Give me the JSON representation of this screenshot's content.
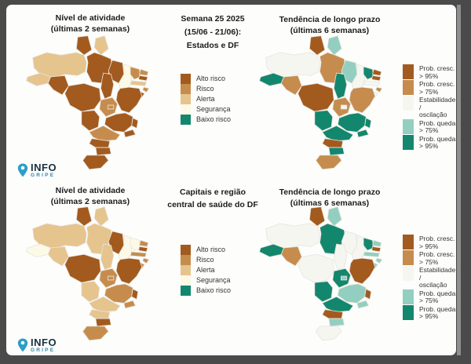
{
  "page": {
    "background": "#fdfdfc",
    "frame_color": "#4a4a4a"
  },
  "colors": {
    "alto": "#a35a1e",
    "risco": "#c68c4d",
    "alerta": "#e6c48e",
    "seguranca": "#fcfae6",
    "baixo": "#13876d",
    "cresc95": "#a35a1e",
    "cresc75": "#c68c4d",
    "estab": "#f6f6f1",
    "queda75": "#93cfc0",
    "queda95": "#13876d"
  },
  "sections": {
    "estados": {
      "activity_title": [
        "Nível de atividade",
        "(últimas 2 semanas)"
      ],
      "center_title": [
        "Semana 25 2025",
        "(15/06 - 21/06):",
        "Estados e DF"
      ],
      "trend_title": [
        "Tendência de longo prazo",
        "(últimas 6 semanas)"
      ]
    },
    "capitais": {
      "activity_title": [
        "Nível de atividade",
        "(últimas 2 semanas)"
      ],
      "center_title": [
        "Capitais e região",
        "central de saúde do DF"
      ],
      "trend_title": [
        "Tendência de longo prazo",
        "(últimas 6 semanas)"
      ]
    }
  },
  "legends": {
    "activity": [
      {
        "key": "alto",
        "label": "Alto risco"
      },
      {
        "key": "risco",
        "label": "Risco"
      },
      {
        "key": "alerta",
        "label": "Alerta"
      },
      {
        "key": "seguranca",
        "label": "Segurança"
      },
      {
        "key": "baixo",
        "label": "Baixo risco"
      }
    ],
    "trend": [
      {
        "key": "cresc95",
        "label": [
          "Prob. cresc.",
          "> 95%"
        ]
      },
      {
        "key": "cresc75",
        "label": [
          "Prob. cresc.",
          "> 75%"
        ]
      },
      {
        "key": "estab",
        "label": [
          "Estabilidade /",
          "oscilação"
        ]
      },
      {
        "key": "queda75",
        "label": [
          "Prob. queda",
          "> 75%"
        ]
      },
      {
        "key": "queda95",
        "label": [
          "Prob. queda",
          "> 95%"
        ]
      }
    ]
  },
  "logo": {
    "line1": "INFO",
    "line2": "GRIPE",
    "pin_color": "#2d9dc9",
    "text_color": "#19323e",
    "sub_color": "#2e87ae"
  },
  "maps": {
    "estados_atividade": {
      "states": {
        "RR": "alto",
        "AP": "alerta",
        "AM": "alerta",
        "AC": "alerta",
        "RO": "alto",
        "PA": "alto",
        "MA": "alto",
        "PI": "seguranca",
        "CE": "risco",
        "RN": "risco",
        "PB": "alto",
        "PE": "alerta",
        "AL": "risco",
        "SE": "alto",
        "BA": "alto",
        "TO": "alto",
        "MT": "alto",
        "GO": "risco",
        "DF": "risco",
        "MS": "alto",
        "MG": "alto",
        "ES": "alto",
        "RJ": "alto",
        "SP": "risco",
        "PR": "alto",
        "SC": "alto",
        "RS": "alto"
      }
    },
    "estados_tendencia": {
      "states": {
        "RR": "cresc95",
        "AP": "queda75",
        "AM": "estab",
        "AC": "queda95",
        "RO": "cresc75",
        "PA": "cresc75",
        "MA": "queda75",
        "PI": "estab",
        "CE": "queda95",
        "RN": "cresc95",
        "PB": "cresc95",
        "PE": "estab",
        "AL": "cresc75",
        "SE": "estab",
        "BA": "cresc75",
        "TO": "queda95",
        "MT": "cresc95",
        "GO": "cresc75",
        "DF": "estab",
        "MS": "queda95",
        "MG": "queda95",
        "ES": "queda95",
        "RJ": "queda95",
        "SP": "queda95",
        "PR": "cresc95",
        "SC": "queda95",
        "RS": "cresc75"
      }
    },
    "capitais_atividade": {
      "states": {
        "RR": "alto",
        "AP": "alerta",
        "AM": "alerta",
        "AC": "seguranca",
        "RO": "alerta",
        "PA": "alerta",
        "MA": "alto",
        "PI": "seguranca",
        "CE": "seguranca",
        "RN": "risco",
        "PB": "alto",
        "PE": "risco",
        "AL": "risco",
        "SE": "risco",
        "BA": "alto",
        "TO": "alerta",
        "MT": "alto",
        "GO": "risco",
        "DF": "risco",
        "MS": "alerta",
        "MG": "risco",
        "ES": "alto",
        "RJ": "risco",
        "SP": "alerta",
        "PR": "alerta",
        "SC": "alto",
        "RS": "risco"
      }
    },
    "capitais_tendencia": {
      "states": {
        "RR": "cresc95",
        "AP": "queda75",
        "AM": "estab",
        "AC": "queda95",
        "RO": "cresc75",
        "PA": "queda95",
        "MA": "estab",
        "PI": "estab",
        "CE": "queda95",
        "RN": "queda75",
        "PB": "cresc95",
        "PE": "queda75",
        "AL": "queda75",
        "SE": "queda75",
        "BA": "cresc95",
        "TO": "estab",
        "MT": "estab",
        "GO": "queda95",
        "DF": "queda75",
        "MS": "queda95",
        "MG": "queda75",
        "ES": "cresc95",
        "RJ": "queda75",
        "SP": "queda95",
        "PR": "cresc95",
        "SC": "queda75",
        "RS": "estab"
      }
    }
  }
}
